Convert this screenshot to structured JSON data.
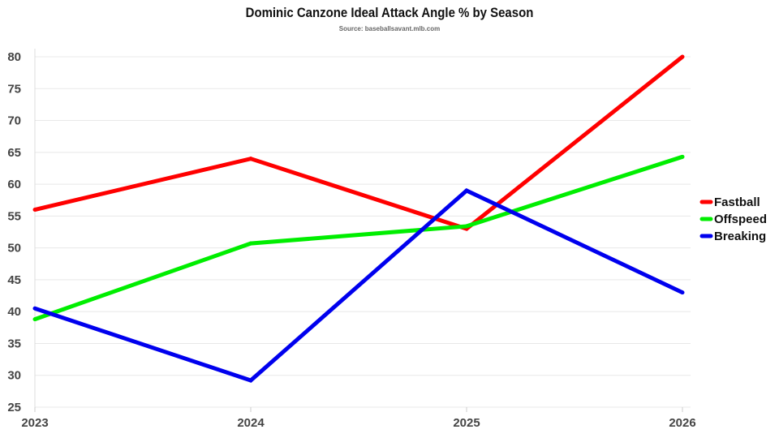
{
  "chart_data": {
    "type": "line",
    "title": "Dominic Canzone Ideal Attack Angle % by Season",
    "subtitle": "Source: baseballsavant.mlb.com",
    "x": [
      "2023",
      "2024",
      "2025",
      "2026"
    ],
    "yticks": [
      25,
      30,
      35,
      40,
      45,
      50,
      55,
      60,
      65,
      70,
      75,
      80
    ],
    "ylim": [
      25,
      80
    ],
    "grid": true,
    "legend_position": "right",
    "series": [
      {
        "name": "Fastball",
        "color": "#ff0000",
        "values": [
          56,
          64,
          53,
          80
        ]
      },
      {
        "name": "Offspeed",
        "color": "#00ee00",
        "values": [
          38.8,
          50.7,
          53.4,
          64.3
        ]
      },
      {
        "name": "Breaking",
        "color": "#0000ee",
        "values": [
          40.5,
          29.2,
          59,
          43
        ]
      }
    ]
  }
}
